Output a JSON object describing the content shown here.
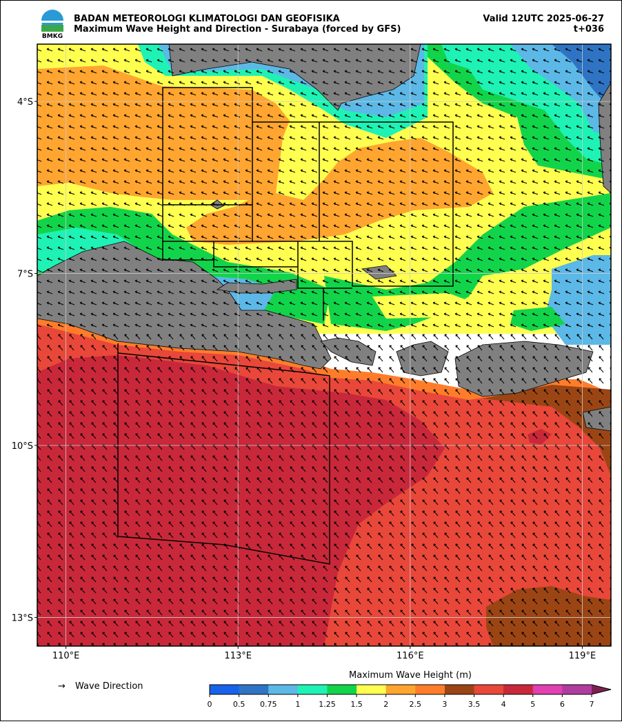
{
  "header": {
    "agency": "BADAN METEOROLOGI KLIMATOLOGI DAN GEOFISIKA",
    "title": "Maximum Wave Height and Direction - Surabaya (forced by GFS)",
    "valid": "Valid 12UTC 2025-06-27",
    "lead": "t+036",
    "logo": "BMKG"
  },
  "map": {
    "lonlim": [
      109.5,
      119.5
    ],
    "latlim": [
      -3,
      -13.5
    ],
    "lon_ticks": [
      {
        "value": 110,
        "label": "110°E"
      },
      {
        "value": 113,
        "label": "113°E"
      },
      {
        "value": 116,
        "label": "116°E"
      },
      {
        "value": 119,
        "label": "119°E"
      }
    ],
    "lat_ticks": [
      {
        "value": -4,
        "label": "4°S"
      },
      {
        "value": -7,
        "label": "7°S"
      },
      {
        "value": -10,
        "label": "10°S"
      },
      {
        "value": -13,
        "label": "13°S"
      }
    ],
    "grid": true
  },
  "legend": {
    "symbol": "→",
    "label": "Wave Direction"
  },
  "colorbar": {
    "title": "Maximum Wave Height (m)",
    "ticks": [
      0,
      0.5,
      0.75,
      1,
      1.25,
      1.5,
      2,
      2.5,
      3,
      3.5,
      4,
      5,
      6,
      7
    ],
    "colors": [
      "#1762ea",
      "#2f74c4",
      "#5cb8e6",
      "#1ef2b4",
      "#12d44a",
      "#ffff50",
      "#ffa530",
      "#ff7d2a",
      "#9b4515",
      "#e8473a",
      "#c8283a",
      "#e040b0",
      "#b03ca0",
      "#7d2050"
    ]
  }
}
